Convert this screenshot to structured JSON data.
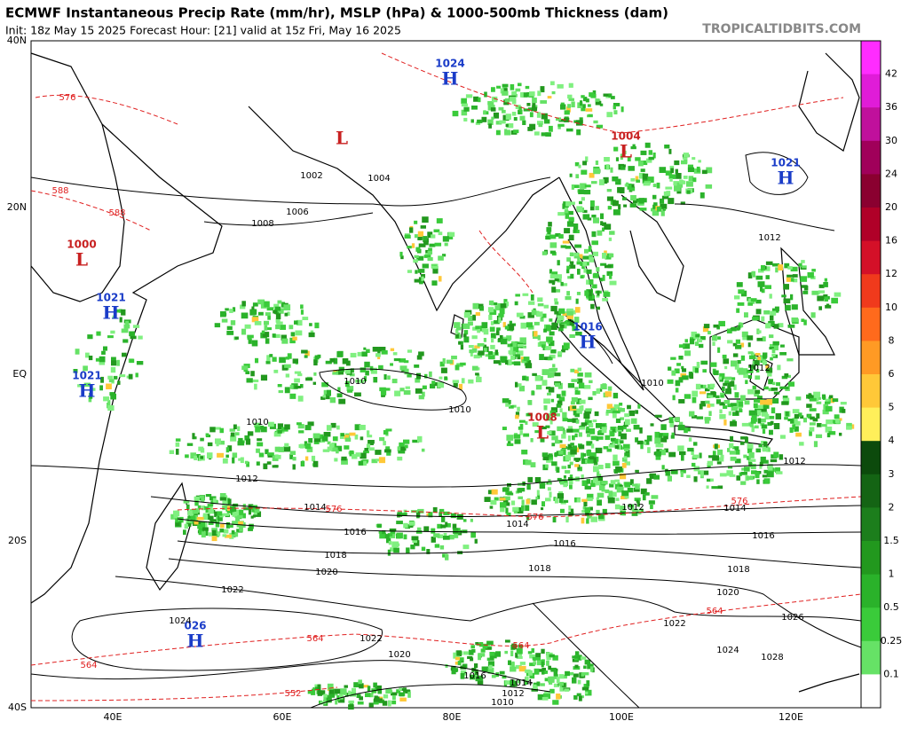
{
  "header": {
    "title": "ECMWF Instantaneous Precip Rate (mm/hr), MSLP (hPa) & 1000-500mb Thickness (dam)",
    "subtitle": "Init: 18z May 15 2025   Forecast Hour: [21]   valid at 15z Fri, May 16 2025",
    "site": "TROPICALTIDBITS.COM"
  },
  "map": {
    "lat_labels": [
      "40N",
      "20N",
      "EQ",
      "20S",
      "40S"
    ],
    "lon_labels": [
      "40E",
      "60E",
      "80E",
      "100E",
      "120E"
    ],
    "centers": [
      {
        "type": "L",
        "value": "1000"
      },
      {
        "type": "H",
        "value": "1021"
      },
      {
        "type": "H",
        "value": "1021"
      },
      {
        "type": "L",
        "value": null
      },
      {
        "type": "H",
        "value": "1024"
      },
      {
        "type": "L",
        "value": "1004"
      },
      {
        "type": "H",
        "value": "1021"
      },
      {
        "type": "H",
        "value": "1016"
      },
      {
        "type": "L",
        "value": "1008"
      },
      {
        "type": "H",
        "value": "026"
      }
    ],
    "isobar_labels": [
      "1002",
      "1004",
      "1006",
      "1008",
      "1010",
      "1010",
      "1010",
      "1012",
      "1014",
      "1016",
      "1018",
      "1020",
      "1022",
      "1024",
      "1022",
      "1020",
      "1016",
      "1014",
      "1012",
      "1010",
      "1014",
      "1016",
      "1018",
      "1012",
      "1014",
      "1016",
      "1018",
      "1020",
      "1022",
      "1024",
      "1026",
      "1028",
      "1012",
      "1010",
      "1012",
      "1012"
    ],
    "thickness_labels": [
      "576",
      "576",
      "576",
      "564",
      "564",
      "564",
      "564",
      "552",
      "588",
      "588",
      "576"
    ]
  },
  "colorbar": {
    "ticks": [
      "42",
      "36",
      "30",
      "24",
      "20",
      "16",
      "12",
      "10",
      "8",
      "6",
      "5",
      "4",
      "3",
      "2",
      "1.5",
      "1",
      "0.5",
      "0.25",
      "0.1"
    ],
    "colors": [
      "#ff2cff",
      "#e01cd8",
      "#c0109c",
      "#a0005a",
      "#8a0030",
      "#b00028",
      "#d41028",
      "#f03a1c",
      "#ff6a1c",
      "#ff9a24",
      "#ffc838",
      "#ffef5a",
      "#0c4a0c",
      "#146414",
      "#1c7e1c",
      "#22981e",
      "#2ab22a",
      "#3acb3a",
      "#66e266",
      "#ffffff"
    ]
  }
}
